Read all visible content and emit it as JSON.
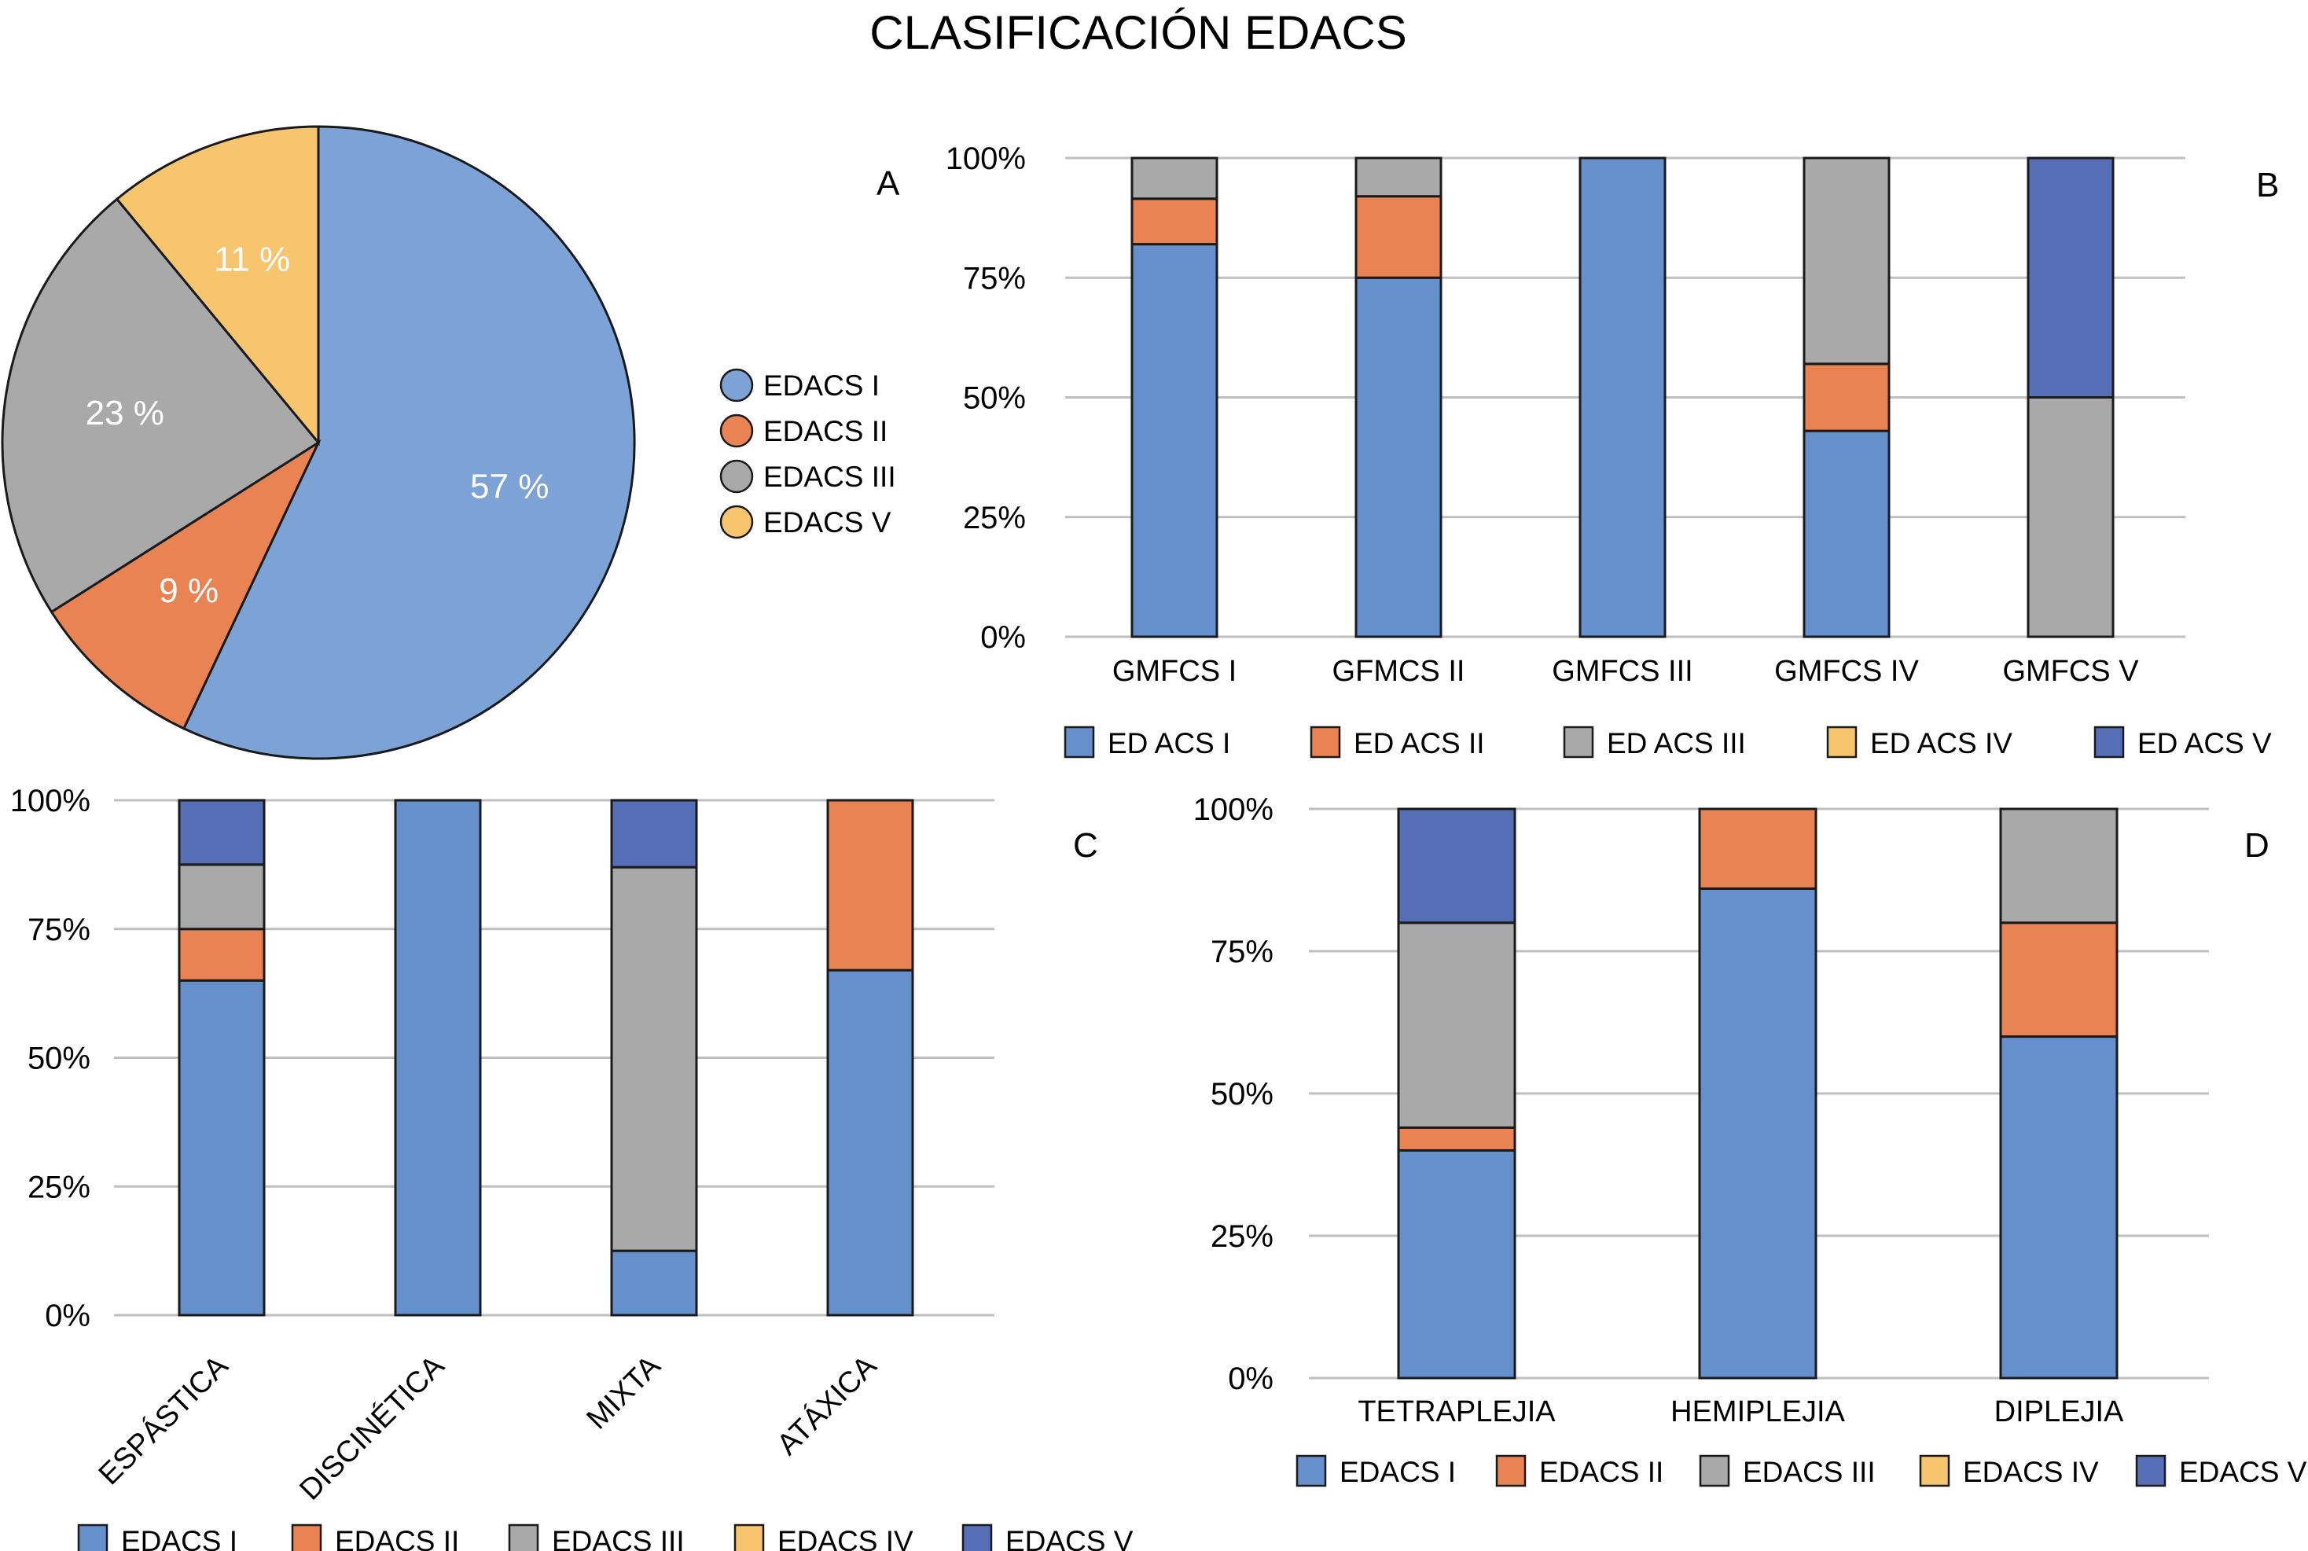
{
  "title": "CLASIFICACIÓN EDACS",
  "colors": {
    "edacs_i": "#6690CB",
    "edacs_i_pie": "#7DA2D6",
    "edacs_ii": "#E98353",
    "edacs_iii": "#A9A9A9",
    "edacs_iv": "#F7C56E",
    "edacs_v": "#556EB6",
    "grid": "#BFBFBF",
    "outline": "#1a1a1a"
  },
  "chart_data": [
    {
      "panel": "A",
      "type": "pie",
      "title": "",
      "slices": [
        {
          "name": "EDACS I",
          "value": 57,
          "label": "57 %",
          "color": "#7DA2D6"
        },
        {
          "name": "EDACS II",
          "value": 9,
          "label": "9 %",
          "color": "#E98353"
        },
        {
          "name": "EDACS III",
          "value": 23,
          "label": "23 %",
          "color": "#A9A9A9"
        },
        {
          "name": "EDACS V",
          "value": 11,
          "label": "11 %",
          "color": "#F7C56E"
        }
      ],
      "legend": [
        "EDACS I",
        "EDACS II",
        "EDACS III",
        "EDACS V"
      ],
      "legend_position": "right"
    },
    {
      "panel": "B",
      "type": "bar",
      "stacked": true,
      "categories": [
        "GMFCS I",
        "GFMCS II",
        "GMFCS III",
        "GMFCS IV",
        "GMFCS V"
      ],
      "yticks": [
        "0%",
        "25%",
        "50%",
        "75%",
        "100%"
      ],
      "ylim": [
        0,
        100
      ],
      "series": [
        {
          "name": "ED ACS   I",
          "color": "#6690CB",
          "values": [
            82,
            75,
            100,
            43,
            0
          ]
        },
        {
          "name": "ED ACS II",
          "color": "#E98353",
          "values": [
            9.5,
            17,
            0,
            14,
            0
          ]
        },
        {
          "name": "ED ACS III",
          "color": "#A9A9A9",
          "values": [
            8.5,
            8,
            0,
            43,
            50
          ]
        },
        {
          "name": "ED ACS IV",
          "color": "#F7C56E",
          "values": [
            0,
            0,
            0,
            0,
            0
          ]
        },
        {
          "name": "ED ACS   V",
          "color": "#556EB6",
          "values": [
            0,
            0,
            0,
            0,
            50
          ]
        }
      ],
      "legend_position": "bottom"
    },
    {
      "panel": "C",
      "type": "bar",
      "stacked": true,
      "categories": [
        "ESPÁSTICA",
        "DISCINÉTICA",
        "MIXTA",
        "ATÁXICA"
      ],
      "yticks": [
        "0%",
        "25%",
        "50%",
        "75%",
        "100%"
      ],
      "ylim": [
        0,
        100
      ],
      "series": [
        {
          "name": "EDACS I",
          "color": "#6690CB",
          "values": [
            65,
            100,
            12.5,
            67
          ]
        },
        {
          "name": "EDACS II",
          "color": "#E98353",
          "values": [
            10,
            0,
            0,
            33
          ]
        },
        {
          "name": "EDACS III",
          "color": "#A9A9A9",
          "values": [
            12.5,
            0,
            74.5,
            0
          ]
        },
        {
          "name": "EDACS IV",
          "color": "#F7C56E",
          "values": [
            0,
            0,
            0,
            0
          ]
        },
        {
          "name": "EDACS V",
          "color": "#556EB6",
          "values": [
            12.5,
            0,
            13,
            0
          ]
        }
      ],
      "legend_position": "bottom"
    },
    {
      "panel": "D",
      "type": "bar",
      "stacked": true,
      "categories": [
        "TETRAPLEJIA",
        "HEMIPLEJIA",
        "DIPLEJIA"
      ],
      "yticks": [
        "0%",
        "25%",
        "50%",
        "75%",
        "100%"
      ],
      "ylim": [
        0,
        100
      ],
      "series": [
        {
          "name": "EDACS I",
          "color": "#6690CB",
          "values": [
            40,
            86,
            60
          ]
        },
        {
          "name": "EDACS II",
          "color": "#E98353",
          "values": [
            4,
            14,
            20
          ]
        },
        {
          "name": "EDACS III",
          "color": "#A9A9A9",
          "values": [
            36,
            0,
            20
          ]
        },
        {
          "name": "EDACS IV",
          "color": "#F7C56E",
          "values": [
            0,
            0,
            0
          ]
        },
        {
          "name": "EDACS V",
          "color": "#556EB6",
          "values": [
            20,
            0,
            0
          ]
        }
      ],
      "legend_position": "bottom"
    }
  ]
}
